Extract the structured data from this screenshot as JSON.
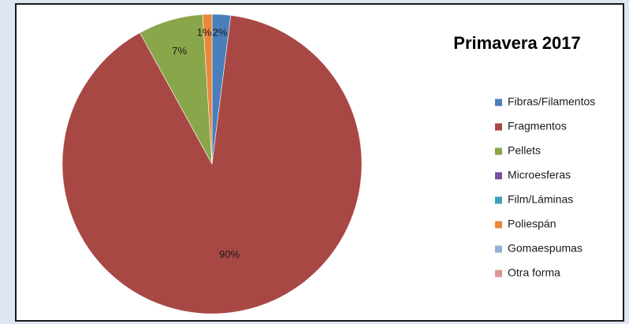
{
  "chart_data": {
    "type": "pie",
    "title": "Primavera 2017",
    "categories": [
      "Fibras/Filamentos",
      "Fragmentos",
      "Pellets",
      "Microesferas",
      "Film/Láminas",
      "Poliespán",
      "Gomaespumas",
      "Otra forma"
    ],
    "values": [
      2,
      90,
      7,
      0,
      0,
      1,
      0,
      0
    ],
    "data_labels": [
      "2%",
      "90%",
      "7%",
      "",
      "",
      "1%",
      "",
      ""
    ],
    "colors": [
      "#4a7ebb",
      "#a84844",
      "#8aa64b",
      "#7153a0",
      "#3fa1bc",
      "#e8883a",
      "#95b0d9",
      "#d99694"
    ],
    "legend_position": "right"
  }
}
